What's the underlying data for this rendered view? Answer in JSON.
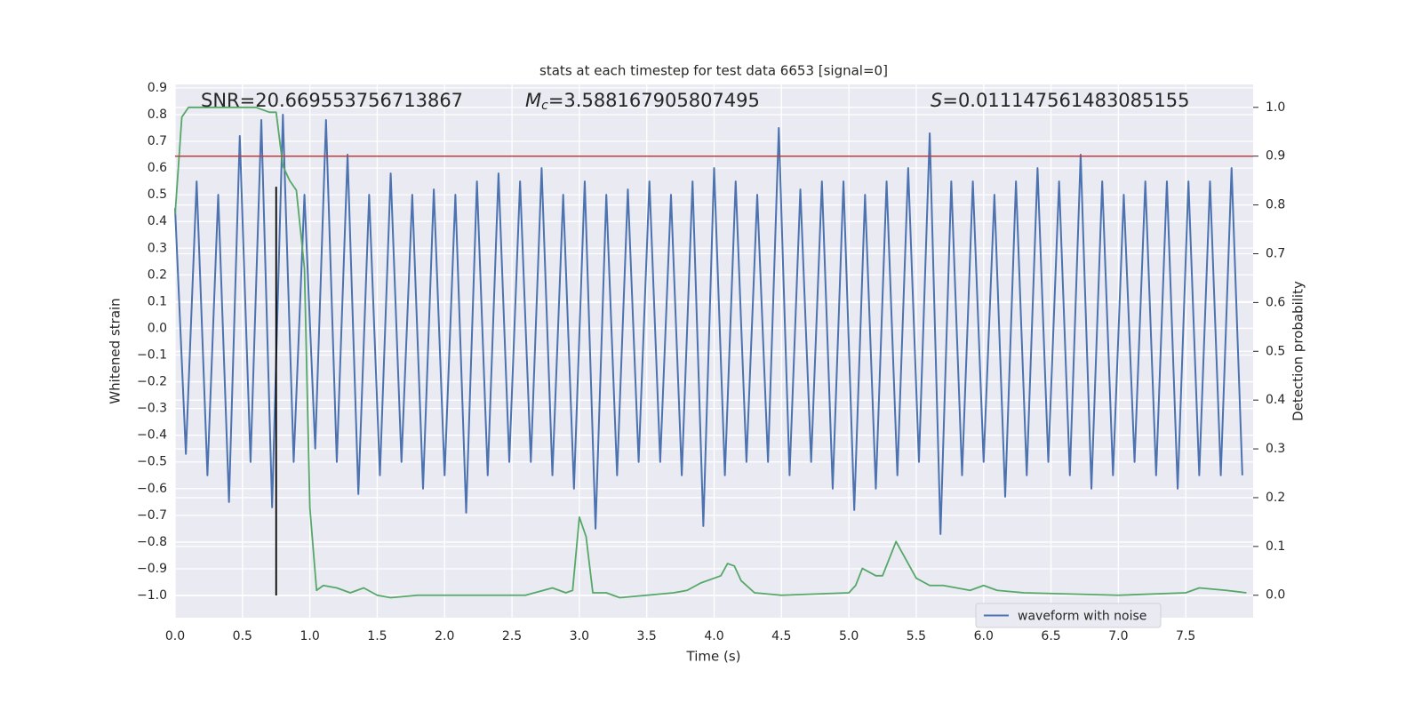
{
  "chart_data": {
    "type": "line",
    "title": "stats at each timestep for test data 6653 [signal=0]",
    "xlabel": "Time (s)",
    "ylabel": "Whitened strain",
    "y2label": "Detection probability",
    "annotations": [
      {
        "text": "SNR=20.669553756713867"
      },
      {
        "symbol": "M",
        "subscript": "c",
        "text": "=3.588167905807495"
      },
      {
        "symbol": "S",
        "text": "=0.011147561483085155"
      }
    ],
    "xlim": [
      0,
      8
    ],
    "ylim": [
      -1.083,
      0.913
    ],
    "y2lim": [
      -0.046,
      1.047
    ],
    "xticks": [
      {
        "value": 0,
        "label": "0.0"
      },
      0.5,
      {
        "value": 1,
        "label": "1.0"
      },
      1.5,
      {
        "value": 2,
        "label": "2.0"
      },
      2.5,
      {
        "value": 3,
        "label": "3.0"
      },
      3.5,
      {
        "value": 4,
        "label": "4.0"
      },
      4.5,
      {
        "value": 5,
        "label": "5.0"
      },
      5.5,
      {
        "value": 6,
        "label": "6.0"
      },
      6.5,
      {
        "value": 7,
        "label": "7.0"
      },
      7.5
    ],
    "yticks": [
      {
        "value": -1.0,
        "label": "−1.0"
      },
      {
        "value": -0.9,
        "label": "−0.9"
      },
      {
        "value": -0.8,
        "label": "−0.8"
      },
      {
        "value": -0.7,
        "label": "−0.7"
      },
      {
        "value": -0.6,
        "label": "−0.6"
      },
      {
        "value": -0.5,
        "label": "−0.5"
      },
      {
        "value": -0.4,
        "label": "−0.4"
      },
      {
        "value": -0.3,
        "label": "−0.3"
      },
      {
        "value": -0.2,
        "label": "−0.2"
      },
      {
        "value": -0.1,
        "label": "−0.1"
      },
      {
        "value": 0,
        "label": "0.0"
      },
      0.1,
      0.2,
      0.3,
      0.4,
      0.5,
      0.6,
      0.7,
      0.8,
      0.9
    ],
    "y2ticks": [
      {
        "value": 0,
        "label": "0.0"
      },
      0.1,
      0.2,
      0.3,
      0.4,
      0.5,
      0.6,
      0.7,
      0.8,
      0.9,
      {
        "value": 1,
        "label": "1.0"
      }
    ],
    "grid": true,
    "legend": "lower right",
    "series": [
      {
        "name": "waveform with noise",
        "color": "#4c72b0",
        "x": [
          0,
          0.08,
          0.16,
          0.24,
          0.32,
          0.4,
          0.48,
          0.56,
          0.64,
          0.72,
          0.8,
          0.88,
          0.96,
          1.04,
          1.12,
          1.2,
          1.28,
          1.36,
          1.44,
          1.52,
          1.6,
          1.68,
          1.76,
          1.84,
          1.92,
          2.0,
          2.08,
          2.16,
          2.24,
          2.32,
          2.4,
          2.48,
          2.56,
          2.64,
          2.72,
          2.8,
          2.88,
          2.96,
          3.04,
          3.12,
          3.2,
          3.28,
          3.36,
          3.44,
          3.52,
          3.6,
          3.68,
          3.76,
          3.84,
          3.92,
          4.0,
          4.08,
          4.16,
          4.24,
          4.32,
          4.4,
          4.48,
          4.56,
          4.64,
          4.72,
          4.8,
          4.88,
          4.96,
          5.04,
          5.12,
          5.2,
          5.28,
          5.36,
          5.44,
          5.52,
          5.6,
          5.68,
          5.76,
          5.84,
          5.92,
          6.0,
          6.08,
          6.16,
          6.24,
          6.32,
          6.4,
          6.48,
          6.56,
          6.64,
          6.72,
          6.8,
          6.88,
          6.96,
          7.04,
          7.12,
          7.2,
          7.28,
          7.36,
          7.44,
          7.52,
          7.6,
          7.68,
          7.76,
          7.84,
          7.92
        ],
        "values": [
          0.45,
          -0.47,
          0.55,
          -0.55,
          0.5,
          -0.65,
          0.72,
          -0.5,
          0.78,
          -0.67,
          0.8,
          -0.5,
          0.5,
          -0.45,
          0.78,
          -0.5,
          0.65,
          -0.62,
          0.5,
          -0.55,
          0.58,
          -0.5,
          0.5,
          -0.6,
          0.52,
          -0.55,
          0.5,
          -0.69,
          0.55,
          -0.55,
          0.58,
          -0.5,
          0.55,
          -0.5,
          0.6,
          -0.55,
          0.5,
          -0.6,
          0.55,
          -0.75,
          0.5,
          -0.55,
          0.52,
          -0.5,
          0.55,
          -0.5,
          0.5,
          -0.55,
          0.55,
          -0.74,
          0.6,
          -0.55,
          0.55,
          -0.5,
          0.5,
          -0.5,
          0.75,
          -0.55,
          0.52,
          -0.5,
          0.55,
          -0.6,
          0.55,
          -0.68,
          0.5,
          -0.6,
          0.55,
          -0.55,
          0.6,
          -0.5,
          0.73,
          -0.77,
          0.55,
          -0.55,
          0.55,
          -0.5,
          0.5,
          -0.63,
          0.55,
          -0.55,
          0.6,
          -0.5,
          0.55,
          -0.55,
          0.65,
          -0.6,
          0.55,
          -0.55,
          0.5,
          -0.5,
          0.55,
          -0.55,
          0.55,
          -0.6,
          0.55,
          -0.55,
          0.55,
          -0.55,
          0.6,
          -0.55
        ]
      },
      {
        "color": "#55a868",
        "axis": "y2",
        "x": [
          0,
          0.05,
          0.1,
          0.2,
          0.3,
          0.4,
          0.5,
          0.6,
          0.7,
          0.75,
          0.8,
          0.85,
          0.9,
          0.96,
          1.0,
          1.05,
          1.1,
          1.2,
          1.3,
          1.4,
          1.5,
          1.6,
          1.8,
          2.0,
          2.2,
          2.4,
          2.6,
          2.8,
          2.9,
          2.95,
          3.0,
          3.05,
          3.1,
          3.2,
          3.3,
          3.5,
          3.7,
          3.8,
          3.9,
          4.0,
          4.05,
          4.1,
          4.15,
          4.2,
          4.3,
          4.5,
          5.0,
          5.05,
          5.1,
          5.2,
          5.25,
          5.35,
          5.5,
          5.6,
          5.7,
          5.9,
          6.0,
          6.1,
          6.3,
          7.0,
          7.5,
          7.6,
          7.8,
          7.95
        ],
        "values": [
          0.78,
          0.98,
          1.0,
          1.0,
          1.0,
          1.0,
          1.0,
          1.0,
          0.99,
          0.99,
          0.88,
          0.85,
          0.83,
          0.67,
          0.18,
          0.01,
          0.02,
          0.015,
          0.005,
          0.015,
          0.0,
          -0.005,
          0.0,
          0.0,
          0.0,
          0.0,
          0.0,
          0.015,
          0.005,
          0.01,
          0.16,
          0.12,
          0.005,
          0.005,
          -0.005,
          0.0,
          0.005,
          0.01,
          0.025,
          0.035,
          0.04,
          0.065,
          0.06,
          0.03,
          0.005,
          0.0,
          0.005,
          0.02,
          0.055,
          0.04,
          0.04,
          0.11,
          0.035,
          0.02,
          0.02,
          0.01,
          0.02,
          0.01,
          0.005,
          0.0,
          0.005,
          0.015,
          0.01,
          0.005
        ]
      }
    ],
    "hlines": [
      {
        "y": 0.9,
        "axis": "y2",
        "color": "#c03d3e"
      }
    ],
    "vlines": [
      {
        "x": 0.75,
        "ymin": -1.0,
        "ymax": 0.53,
        "color": "#000000"
      }
    ]
  }
}
